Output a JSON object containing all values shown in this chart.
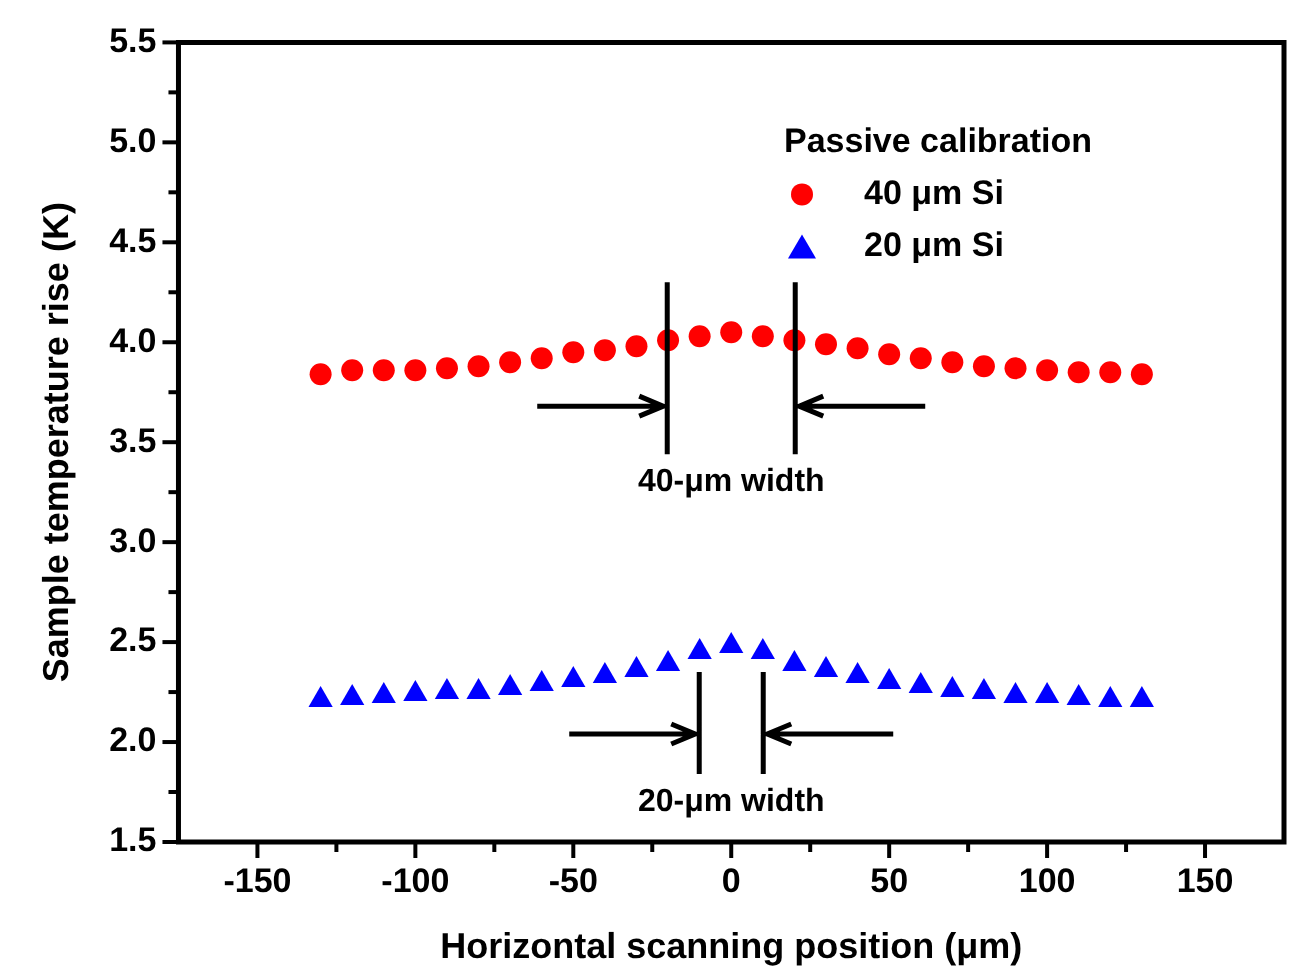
{
  "chart_data": {
    "type": "scatter",
    "xlabel": "Horizontal scanning position (μm)",
    "ylabel": "Sample temperature rise (K)",
    "legend_title": "Passive calibration",
    "legend": "top right",
    "grid": false,
    "x": [
      -130,
      -120,
      -110,
      -100,
      -90,
      -80,
      -70,
      -60,
      -50,
      -40,
      -30,
      -20,
      -10,
      0,
      10,
      20,
      30,
      40,
      50,
      60,
      70,
      80,
      90,
      100,
      110,
      120,
      130
    ],
    "series": [
      {
        "name": "40 μm Si",
        "color": "#ff0000",
        "marker": "circle",
        "values": [
          3.84,
          3.86,
          3.86,
          3.86,
          3.87,
          3.88,
          3.9,
          3.92,
          3.95,
          3.96,
          3.98,
          4.01,
          4.03,
          4.05,
          4.03,
          4.01,
          3.99,
          3.97,
          3.94,
          3.92,
          3.9,
          3.88,
          3.87,
          3.86,
          3.85,
          3.85,
          3.84
        ]
      },
      {
        "name": "20 μm Si",
        "color": "#0000ff",
        "marker": "triangle",
        "values": [
          2.21,
          2.22,
          2.23,
          2.24,
          2.25,
          2.25,
          2.27,
          2.29,
          2.31,
          2.33,
          2.36,
          2.39,
          2.45,
          2.48,
          2.45,
          2.39,
          2.36,
          2.33,
          2.3,
          2.28,
          2.26,
          2.25,
          2.23,
          2.23,
          2.22,
          2.21,
          2.21
        ]
      }
    ],
    "xlim": [
      -175,
      175
    ],
    "xticks": [
      -150,
      -100,
      -50,
      0,
      50,
      100,
      150
    ],
    "ylim": [
      1.5,
      5.5
    ],
    "yticks": [
      1.5,
      {
        "value": 2,
        "label": "2.0"
      },
      2.5,
      {
        "value": 3,
        "label": "3.0"
      },
      3.5,
      {
        "value": 4,
        "label": "4.0"
      },
      4.5,
      {
        "value": 5,
        "label": "5.0"
      },
      5.5
    ],
    "annotations": [
      "40-μm width",
      "20-μm width"
    ]
  }
}
